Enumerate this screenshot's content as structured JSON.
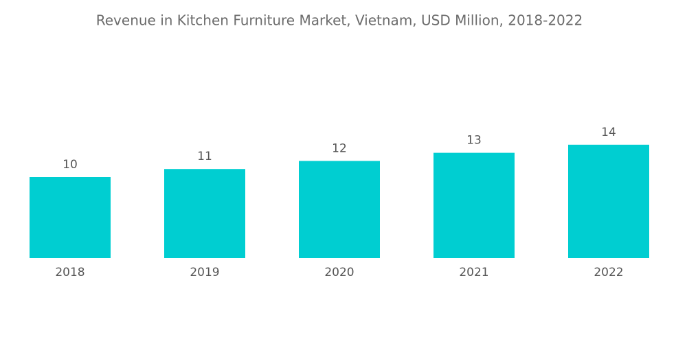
{
  "chart_data": {
    "type": "bar",
    "title": "Revenue in Kitchen Furniture Market, Vietnam, USD Million, 2018-2022",
    "categories": [
      "2018",
      "2019",
      "2020",
      "2021",
      "2022"
    ],
    "values": [
      10,
      11,
      12,
      13,
      14
    ],
    "color": "#00ced1"
  }
}
